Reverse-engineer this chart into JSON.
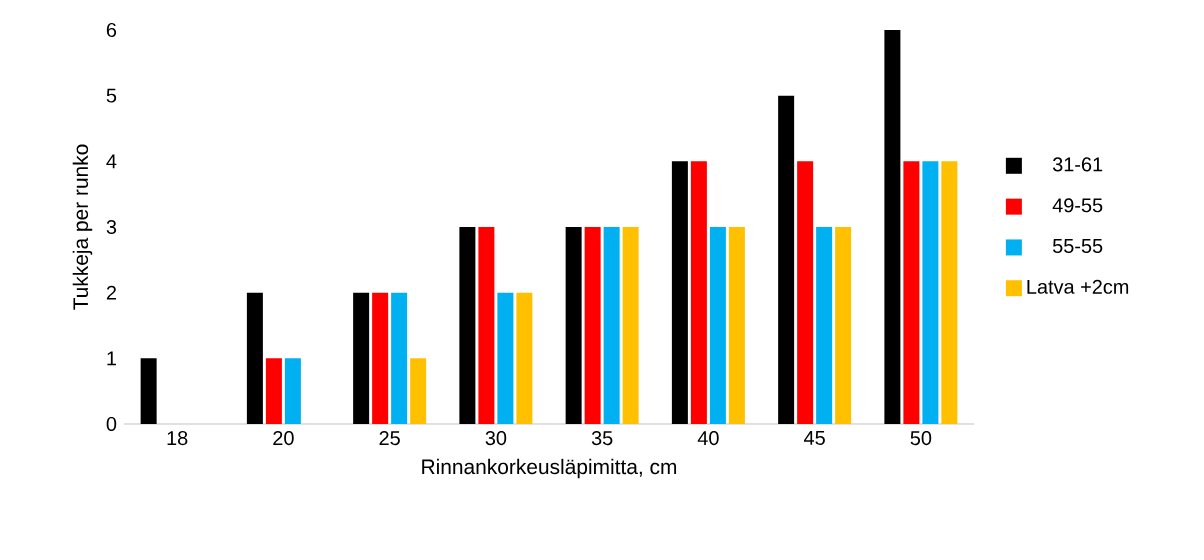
{
  "chart_data": {
    "type": "bar",
    "xlabel": "Rinnankorkeusläpimitta, cm",
    "ylabel": "Tukkeja per runko",
    "categories": [
      "18",
      "20",
      "25",
      "30",
      "35",
      "40",
      "45",
      "50"
    ],
    "series": [
      {
        "name": "31-61",
        "color": "#000000",
        "values": [
          1,
          2,
          2,
          3,
          3,
          4,
          5,
          6
        ]
      },
      {
        "name": "49-55",
        "color": "#ff0000",
        "values": [
          0,
          1,
          2,
          3,
          3,
          4,
          4,
          4
        ]
      },
      {
        "name": "55-55",
        "color": "#00b0f0",
        "values": [
          0,
          1,
          2,
          2,
          3,
          3,
          3,
          4
        ]
      },
      {
        "name": "Latva +2cm",
        "color": "#ffc000",
        "values": [
          0,
          0,
          1,
          2,
          3,
          3,
          3,
          4
        ]
      }
    ],
    "ylim": [
      0,
      6
    ],
    "yticks": [
      0,
      1,
      2,
      3,
      4,
      5,
      6
    ],
    "grid": false,
    "legend": "right"
  }
}
